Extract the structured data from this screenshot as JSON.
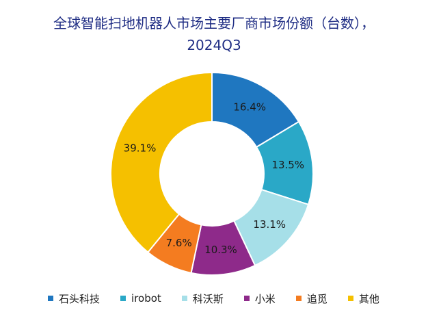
{
  "chart_data": {
    "type": "pie",
    "title": "全球智能扫地机器人市场主要厂商市场份额（台数），",
    "subtitle": "2024Q3",
    "categories": [
      "石头科技",
      "irobot",
      "科沃斯",
      "小米",
      "追觅",
      "其他"
    ],
    "values": [
      16.4,
      13.5,
      13.1,
      10.3,
      7.6,
      39.1
    ],
    "labels": [
      "16.4%",
      "13.5%",
      "13.1%",
      "10.3%",
      "7.6%",
      "39.1%"
    ],
    "colors": [
      "#1f77c0",
      "#2aa8c7",
      "#a6dfe8",
      "#8e2a8a",
      "#f47c20",
      "#f5c000"
    ],
    "legend_position": "bottom"
  }
}
